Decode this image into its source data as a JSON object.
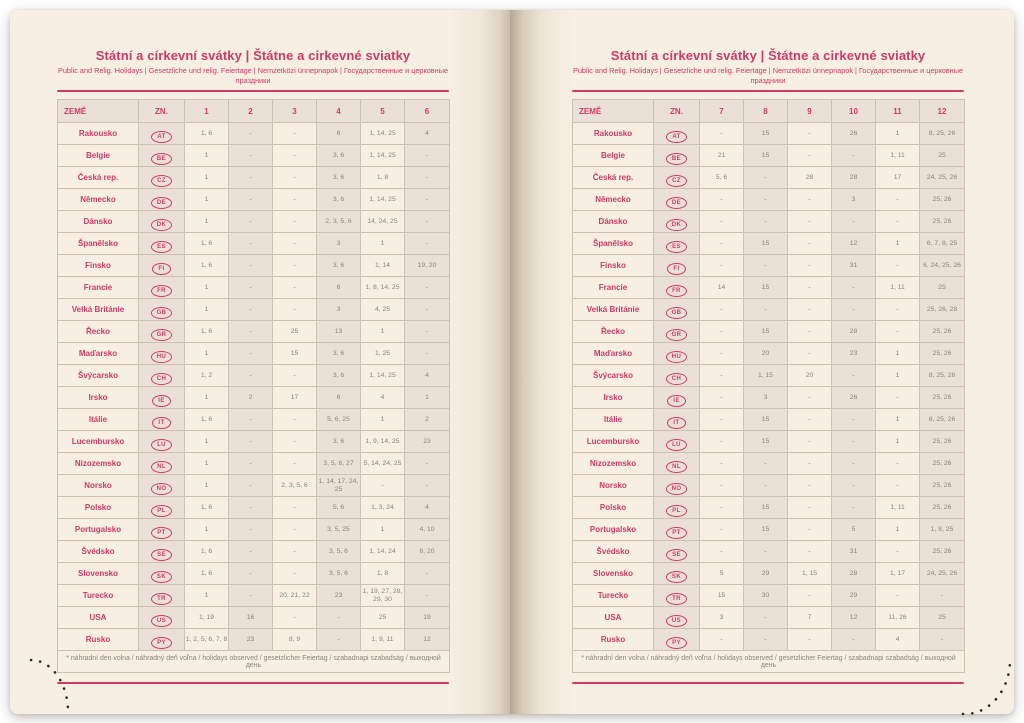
{
  "book": {
    "title": "Státní a církevní svátky | Štátne a cirkevné sviatky",
    "subtitle": "Public and Relig. Holidays | Gesetzliche und relig. Feiertage | Nemzetközi ünnepnapok | Государственные и церковные праздники",
    "footnote": "* náhradní den volna / náhradný deň voľna / holidays observed / gesetzlicher Feiertag / szabadnapi szabadság / выходной день",
    "columns": {
      "country": "ZEMĚ",
      "code": "ZN.",
      "months_left": [
        "1",
        "2",
        "3",
        "4",
        "5",
        "6"
      ],
      "months_right": [
        "7",
        "8",
        "9",
        "10",
        "11",
        "12"
      ]
    },
    "rows": [
      {
        "country": "Rakousko",
        "code": "AT",
        "m": [
          "1, 6",
          "-",
          "-",
          "6",
          "1, 14, 25",
          "4",
          "-",
          "15",
          "-",
          "26",
          "1",
          "8, 25, 26"
        ]
      },
      {
        "country": "Belgie",
        "code": "BE",
        "m": [
          "1",
          "-",
          "-",
          "3, 6",
          "1, 14, 25",
          "-",
          "21",
          "15",
          "-",
          "-",
          "1, 11",
          "25"
        ]
      },
      {
        "country": "Česká rep.",
        "code": "CZ",
        "m": [
          "1",
          "-",
          "-",
          "3, 6",
          "1, 8",
          "-",
          "5, 6",
          "-",
          "28",
          "28",
          "17",
          "24, 25, 26"
        ]
      },
      {
        "country": "Německo",
        "code": "DE",
        "m": [
          "1",
          "-",
          "-",
          "3, 6",
          "1, 14, 25",
          "-",
          "-",
          "-",
          "-",
          "3",
          "-",
          "25, 26"
        ]
      },
      {
        "country": "Dánsko",
        "code": "DK",
        "m": [
          "1",
          "-",
          "-",
          "2, 3, 5, 6",
          "14, 24, 25",
          "-",
          "-",
          "-",
          "-",
          "-",
          "-",
          "25, 26"
        ]
      },
      {
        "country": "Španělsko",
        "code": "ES",
        "m": [
          "1, 6",
          "-",
          "-",
          "3",
          "1",
          "-",
          "-",
          "15",
          "-",
          "12",
          "1",
          "6, 7, 8, 25"
        ]
      },
      {
        "country": "Finsko",
        "code": "FI",
        "m": [
          "1, 6",
          "-",
          "-",
          "3, 6",
          "1, 14",
          "19, 20",
          "-",
          "-",
          "-",
          "31",
          "-",
          "6, 24, 25, 26"
        ]
      },
      {
        "country": "Francie",
        "code": "FR",
        "m": [
          "1",
          "-",
          "-",
          "6",
          "1, 8, 14, 25",
          "-",
          "14",
          "15",
          "-",
          "-",
          "1, 11",
          "25"
        ]
      },
      {
        "country": "Velká Británie",
        "code": "GB",
        "m": [
          "1",
          "-",
          "-",
          "3",
          "4, 25",
          "-",
          "-",
          "-",
          "-",
          "-",
          "-",
          "25, 26, 28"
        ]
      },
      {
        "country": "Řecko",
        "code": "GR",
        "m": [
          "1, 6",
          "-",
          "25",
          "13",
          "1",
          "-",
          "-",
          "15",
          "-",
          "28",
          "-",
          "25, 26"
        ]
      },
      {
        "country": "Maďarsko",
        "code": "HU",
        "m": [
          "1",
          "-",
          "15",
          "3, 6",
          "1, 25",
          "-",
          "-",
          "20",
          "-",
          "23",
          "1",
          "25, 26"
        ]
      },
      {
        "country": "Švýcarsko",
        "code": "CH",
        "m": [
          "1, 2",
          "-",
          "-",
          "3, 6",
          "1, 14, 25",
          "4",
          "-",
          "1, 15",
          "20",
          "-",
          "1",
          "8, 25, 26"
        ]
      },
      {
        "country": "Irsko",
        "code": "IE",
        "m": [
          "1",
          "2",
          "17",
          "6",
          "4",
          "1",
          "-",
          "3",
          "-",
          "26",
          "-",
          "25, 26"
        ]
      },
      {
        "country": "Itálie",
        "code": "IT",
        "m": [
          "1, 6",
          "-",
          "-",
          "5, 6, 25",
          "1",
          "2",
          "-",
          "15",
          "-",
          "-",
          "1",
          "8, 25, 26"
        ]
      },
      {
        "country": "Lucembursko",
        "code": "LU",
        "m": [
          "1",
          "-",
          "-",
          "3, 6",
          "1, 9, 14, 25",
          "23",
          "-",
          "15",
          "-",
          "-",
          "1",
          "25, 26"
        ]
      },
      {
        "country": "Nizozemsko",
        "code": "NL",
        "m": [
          "1",
          "-",
          "-",
          "3, 5, 6, 27",
          "5, 14, 24, 25",
          "-",
          "-",
          "-",
          "-",
          "-",
          "-",
          "25, 26"
        ]
      },
      {
        "country": "Norsko",
        "code": "NO",
        "m": [
          "1",
          "-",
          "2, 3, 5, 6",
          "1, 14, 17, 24, 25",
          "-",
          "-",
          "-",
          "-",
          "-",
          "-",
          "-",
          "25, 26"
        ]
      },
      {
        "country": "Polsko",
        "code": "PL",
        "m": [
          "1, 6",
          "-",
          "-",
          "5, 6",
          "1, 3, 24",
          "4",
          "-",
          "15",
          "-",
          "-",
          "1, 11",
          "25, 26"
        ]
      },
      {
        "country": "Portugalsko",
        "code": "PT",
        "m": [
          "1",
          "-",
          "-",
          "3, 5, 25",
          "1",
          "4, 10",
          "-",
          "15",
          "-",
          "5",
          "1",
          "1, 8, 25"
        ]
      },
      {
        "country": "Švédsko",
        "code": "SE",
        "m": [
          "1, 6",
          "-",
          "-",
          "3, 5, 6",
          "1, 14, 24",
          "6, 20",
          "-",
          "-",
          "-",
          "31",
          "-",
          "25, 26"
        ]
      },
      {
        "country": "Slovensko",
        "code": "SK",
        "m": [
          "1, 6",
          "-",
          "-",
          "3, 5, 6",
          "1, 8",
          "-",
          "5",
          "29",
          "1, 15",
          "28",
          "1, 17",
          "24, 25, 26"
        ]
      },
      {
        "country": "Turecko",
        "code": "TR",
        "m": [
          "1",
          "-",
          "20, 21, 22",
          "23",
          "1, 19, 27, 28, 29, 30",
          "-",
          "15",
          "30",
          "-",
          "29",
          "-",
          "-"
        ]
      },
      {
        "country": "USA",
        "code": "US",
        "m": [
          "1, 19",
          "16",
          "-",
          "-",
          "25",
          "19",
          "3",
          "-",
          "7",
          "12",
          "11, 26",
          "25"
        ]
      },
      {
        "country": "Rusko",
        "code": "PY",
        "m": [
          "1, 2, 5, 6, 7, 8",
          "23",
          "8, 9",
          "-",
          "1, 9, 11",
          "12",
          "-",
          "-",
          "-",
          "-",
          "4",
          "-"
        ]
      }
    ],
    "colors": {
      "accent": "#cf3a68",
      "paper": "#f6efe2",
      "cell_tint": "#ebe0d6",
      "value_text": "#8d857a",
      "stitch_dots": "#2e2a26"
    }
  }
}
